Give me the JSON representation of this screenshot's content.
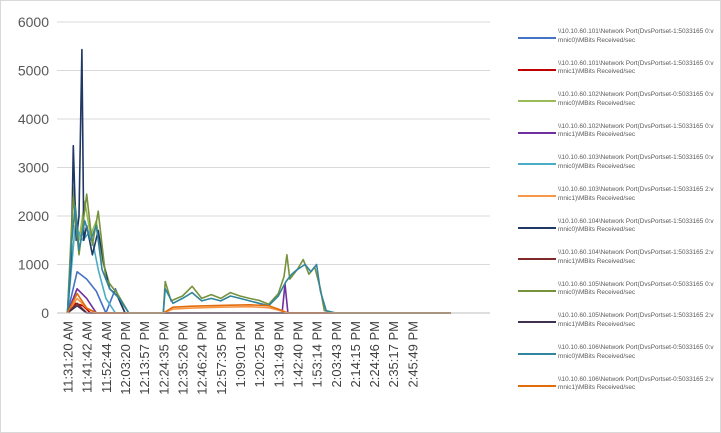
{
  "chart_data": {
    "type": "line",
    "title": "",
    "xlabel": "",
    "ylabel": "",
    "ylim": [
      0,
      6000
    ],
    "yticks": [
      "0",
      "1000",
      "2000",
      "3000",
      "4000",
      "5000",
      "6000"
    ],
    "xticks": [
      "11:31:20 AM",
      "11:41:42 AM",
      "11:52:44 AM",
      "12:03:20 PM",
      "12:13:57 PM",
      "12:24:35 PM",
      "12:35:26 PM",
      "12:46:24 PM",
      "12:57:35 PM",
      "1:09:01 PM",
      "1:20:25 PM",
      "1:31:49 PM",
      "1:42:40 PM",
      "1:53:14 PM",
      "2:03:43 PM",
      "2:14:15 PM",
      "2:24:46 PM",
      "2:35:17 PM",
      "2:45:49 PM"
    ],
    "grid": true,
    "legend_position": "right",
    "series": [
      {
        "name": "\\\\10.10.60.101\\Network Port(DvsPortset-1:5033165 0:vmnic0)\\MBits Received/sec",
        "color": "#4472c4",
        "points": [
          [
            0,
            0
          ],
          [
            0.5,
            850
          ],
          [
            1,
            700
          ],
          [
            1.5,
            450
          ],
          [
            2,
            0
          ],
          [
            2.5,
            500
          ],
          [
            3,
            0
          ],
          [
            4,
            0
          ],
          [
            20,
            0
          ]
        ]
      },
      {
        "name": "\\\\10.10.60.101\\Network Port(DvsPortset-1:5033165 0:vmnic1)\\MBits Received/sec",
        "color": "#c00000",
        "points": [
          [
            0,
            0
          ],
          [
            0.4,
            200
          ],
          [
            0.8,
            150
          ],
          [
            1.2,
            0
          ],
          [
            20,
            0
          ]
        ]
      },
      {
        "name": "\\\\10.10.60.102\\Network Port(DvsPortset-0:5033165 0:vmnic0)\\MBits Received/sec",
        "color": "#9bbb59",
        "points": [
          [
            0,
            0
          ],
          [
            0.3,
            2600
          ],
          [
            0.6,
            1500
          ],
          [
            0.9,
            2300
          ],
          [
            1.2,
            1600
          ],
          [
            1.5,
            1900
          ],
          [
            1.8,
            1100
          ],
          [
            2.2,
            600
          ],
          [
            2.6,
            400
          ],
          [
            3,
            0
          ],
          [
            20,
            0
          ]
        ]
      },
      {
        "name": "\\\\10.10.60.102\\Network Port(DvsPortset-1:5033165 0:vmnic1)\\MBits Received/sec",
        "color": "#7030a0",
        "points": [
          [
            0,
            0
          ],
          [
            0.5,
            500
          ],
          [
            1,
            300
          ],
          [
            1.5,
            0
          ],
          [
            11.2,
            0
          ],
          [
            11.35,
            600
          ],
          [
            11.5,
            0
          ],
          [
            20,
            0
          ]
        ]
      },
      {
        "name": "\\\\10.10.60.103\\Network Port(DvsPortset-1:5033165 0:vmnic0)\\MBits Received/sec",
        "color": "#4bacc6",
        "points": [
          [
            0,
            0
          ],
          [
            0.4,
            1800
          ],
          [
            0.8,
            1500
          ],
          [
            1.2,
            1700
          ],
          [
            1.6,
            900
          ],
          [
            2,
            300
          ],
          [
            2.5,
            0
          ],
          [
            20,
            0
          ]
        ]
      },
      {
        "name": "\\\\10.10.60.103\\Network Port(DvsPortset-1:5033165 2:vmnic1)\\MBits Received/sec",
        "color": "#f79646",
        "points": [
          [
            0,
            0
          ],
          [
            0.5,
            300
          ],
          [
            1,
            100
          ],
          [
            1.5,
            0
          ],
          [
            5,
            0
          ],
          [
            5.5,
            80
          ],
          [
            6.5,
            100
          ],
          [
            8,
            120
          ],
          [
            9.5,
            130
          ],
          [
            10.5,
            110
          ],
          [
            11,
            60
          ],
          [
            11.5,
            0
          ],
          [
            20,
            0
          ]
        ]
      },
      {
        "name": "\\\\10.10.60.104\\Network Port(DvsPortset-1:5033165 0:vmnic0)\\MBits Received/sec",
        "color": "#1f3864",
        "points": [
          [
            0,
            0
          ],
          [
            0.2,
            1200
          ],
          [
            0.3,
            3450
          ],
          [
            0.45,
            1500
          ],
          [
            0.6,
            2000
          ],
          [
            0.75,
            5430
          ],
          [
            0.85,
            1500
          ],
          [
            1,
            1800
          ],
          [
            1.3,
            1200
          ],
          [
            1.6,
            1700
          ],
          [
            1.9,
            1000
          ],
          [
            2.2,
            500
          ],
          [
            2.6,
            350
          ],
          [
            3,
            0
          ],
          [
            20,
            0
          ]
        ]
      },
      {
        "name": "\\\\10.10.60.104\\Network Port(DvsPortset-1:5033165 2:vmnic1)\\MBits Received/sec",
        "color": "#7f2a2a",
        "points": [
          [
            0,
            0
          ],
          [
            0.5,
            200
          ],
          [
            1,
            0
          ],
          [
            20,
            0
          ]
        ]
      },
      {
        "name": "\\\\10.10.60.105\\Network Port(DvsPortset-0:5033165 0:vmnic0)\\MBits Received/sec",
        "color": "#76923c",
        "points": [
          [
            0,
            0
          ],
          [
            0.3,
            2400
          ],
          [
            0.6,
            1200
          ],
          [
            1,
            2450
          ],
          [
            1.3,
            1400
          ],
          [
            1.6,
            2100
          ],
          [
            2,
            700
          ],
          [
            2.6,
            400
          ],
          [
            3.2,
            0
          ],
          [
            5,
            0
          ],
          [
            5.1,
            650
          ],
          [
            5.4,
            250
          ],
          [
            6,
            350
          ],
          [
            6.5,
            550
          ],
          [
            7,
            300
          ],
          [
            7.5,
            380
          ],
          [
            8,
            300
          ],
          [
            8.5,
            420
          ],
          [
            9,
            350
          ],
          [
            9.5,
            300
          ],
          [
            10,
            260
          ],
          [
            10.5,
            180
          ],
          [
            11,
            400
          ],
          [
            11.3,
            750
          ],
          [
            11.45,
            1200
          ],
          [
            11.6,
            700
          ],
          [
            12,
            900
          ],
          [
            12.3,
            1100
          ],
          [
            12.6,
            800
          ],
          [
            12.9,
            950
          ],
          [
            13.2,
            500
          ],
          [
            13.4,
            50
          ],
          [
            14,
            0
          ],
          [
            20,
            0
          ]
        ]
      },
      {
        "name": "\\\\10.10.60.105\\Network Port(DvsPortset-1:5033165 2:vmnic1)\\MBits Received/sec",
        "color": "#403151",
        "points": [
          [
            0,
            0
          ],
          [
            0.5,
            150
          ],
          [
            1,
            0
          ],
          [
            20,
            0
          ]
        ]
      },
      {
        "name": "\\\\10.10.60.106\\Network Port(DvsPortset-0:5033165 0:vmnic0)\\MBits Received/sec",
        "color": "#31859c",
        "points": [
          [
            0,
            0
          ],
          [
            0.2,
            1400
          ],
          [
            0.4,
            2200
          ],
          [
            0.6,
            1300
          ],
          [
            0.9,
            1900
          ],
          [
            1.2,
            1500
          ],
          [
            1.5,
            1800
          ],
          [
            1.8,
            900
          ],
          [
            2.2,
            500
          ],
          [
            2.7,
            300
          ],
          [
            3.2,
            0
          ],
          [
            5,
            0
          ],
          [
            5.1,
            500
          ],
          [
            5.5,
            200
          ],
          [
            6,
            300
          ],
          [
            6.5,
            420
          ],
          [
            7,
            250
          ],
          [
            7.5,
            300
          ],
          [
            8,
            250
          ],
          [
            8.5,
            350
          ],
          [
            9,
            300
          ],
          [
            9.5,
            250
          ],
          [
            10,
            200
          ],
          [
            10.5,
            150
          ],
          [
            11,
            350
          ],
          [
            11.4,
            650
          ],
          [
            11.7,
            800
          ],
          [
            12,
            900
          ],
          [
            12.4,
            1000
          ],
          [
            12.7,
            850
          ],
          [
            13,
            1000
          ],
          [
            13.2,
            450
          ],
          [
            13.5,
            50
          ],
          [
            14,
            0
          ],
          [
            20,
            0
          ]
        ]
      },
      {
        "name": "\\\\10.10.60.106\\Network Port(DvsPortset-0:5033165 2:vmnic1)\\MBits Received/sec",
        "color": "#e26b0a",
        "points": [
          [
            0,
            0
          ],
          [
            0.5,
            400
          ],
          [
            1,
            100
          ],
          [
            1.5,
            0
          ],
          [
            5,
            0
          ],
          [
            5.5,
            120
          ],
          [
            6.5,
            140
          ],
          [
            7.5,
            150
          ],
          [
            8.5,
            160
          ],
          [
            9.5,
            170
          ],
          [
            10.5,
            150
          ],
          [
            11,
            80
          ],
          [
            11.5,
            0
          ],
          [
            20,
            0
          ]
        ]
      }
    ]
  }
}
